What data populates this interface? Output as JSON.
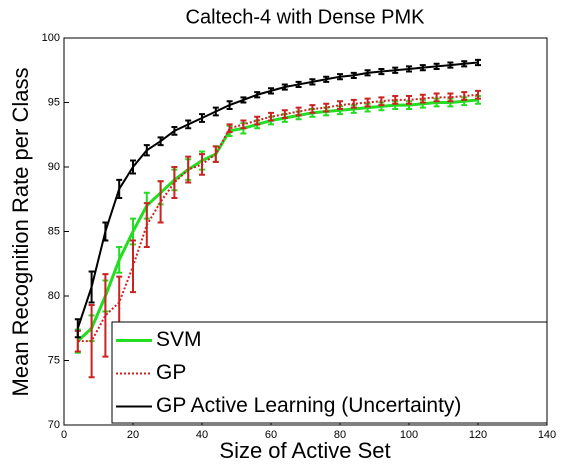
{
  "chart_data": {
    "type": "line",
    "title": "Caltech-4 with Dense PMK",
    "x_label": "Size of Active Set",
    "y_label": "Mean Recognition Rate per Class",
    "x": [
      4,
      8,
      12,
      16,
      20,
      24,
      28,
      32,
      36,
      40,
      44,
      48,
      52,
      56,
      60,
      64,
      68,
      72,
      76,
      80,
      84,
      88,
      92,
      96,
      100,
      104,
      108,
      112,
      116,
      120
    ],
    "series": [
      {
        "name": "SVM",
        "color": "#22dd22",
        "dash": "solid",
        "width": 3,
        "values": [
          76.5,
          77.5,
          80.0,
          82.8,
          85.0,
          87.0,
          88.0,
          89.0,
          89.8,
          90.5,
          91.0,
          92.8,
          93.0,
          93.3,
          93.6,
          93.8,
          94.0,
          94.2,
          94.3,
          94.4,
          94.5,
          94.6,
          94.7,
          94.8,
          94.8,
          94.9,
          95.0,
          95.0,
          95.1,
          95.2
        ],
        "errors": [
          0.9,
          1.0,
          1.2,
          1.0,
          1.0,
          1.0,
          0.9,
          0.8,
          0.8,
          0.7,
          0.6,
          0.4,
          0.4,
          0.3,
          0.3,
          0.3,
          0.3,
          0.3,
          0.3,
          0.3,
          0.3,
          0.3,
          0.3,
          0.3,
          0.3,
          0.3,
          0.3,
          0.3,
          0.3,
          0.3
        ]
      },
      {
        "name": "GP",
        "color": "#cc2222",
        "dash": "dotted",
        "width": 2,
        "values": [
          76.5,
          76.5,
          78.5,
          79.5,
          82.3,
          85.5,
          87.3,
          88.8,
          89.8,
          90.2,
          91.0,
          93.0,
          93.3,
          93.6,
          93.9,
          94.1,
          94.3,
          94.5,
          94.6,
          94.8,
          94.9,
          95.0,
          95.1,
          95.2,
          95.2,
          95.3,
          95.4,
          95.4,
          95.5,
          95.6
        ],
        "errors": [
          0.8,
          2.8,
          3.2,
          2.0,
          2.0,
          1.7,
          1.6,
          1.2,
          1.0,
          0.8,
          0.6,
          0.3,
          0.3,
          0.3,
          0.3,
          0.3,
          0.3,
          0.3,
          0.3,
          0.3,
          0.3,
          0.3,
          0.3,
          0.3,
          0.3,
          0.3,
          0.3,
          0.3,
          0.3,
          0.3
        ]
      },
      {
        "name": "GP Active Learning (Uncertainty)",
        "color": "#000000",
        "dash": "solid",
        "width": 2,
        "values": [
          77.5,
          80.7,
          85.0,
          88.3,
          90.0,
          91.3,
          92.0,
          92.8,
          93.3,
          93.8,
          94.3,
          94.8,
          95.2,
          95.6,
          95.9,
          96.2,
          96.4,
          96.6,
          96.8,
          97.0,
          97.1,
          97.3,
          97.4,
          97.5,
          97.6,
          97.7,
          97.8,
          97.9,
          98.0,
          98.1
        ],
        "errors": [
          0.7,
          1.2,
          0.7,
          0.7,
          0.5,
          0.4,
          0.3,
          0.3,
          0.3,
          0.3,
          0.3,
          0.3,
          0.2,
          0.2,
          0.2,
          0.2,
          0.2,
          0.2,
          0.2,
          0.2,
          0.2,
          0.2,
          0.2,
          0.2,
          0.2,
          0.2,
          0.2,
          0.2,
          0.2,
          0.2
        ]
      }
    ],
    "xlim": [
      0,
      140
    ],
    "xticks": [
      0,
      20,
      40,
      60,
      80,
      100,
      120,
      140
    ],
    "ylim": [
      70,
      100
    ],
    "yticks": [
      70,
      75,
      80,
      85,
      90,
      95,
      100
    ],
    "grid": false,
    "legend": "lower right"
  }
}
